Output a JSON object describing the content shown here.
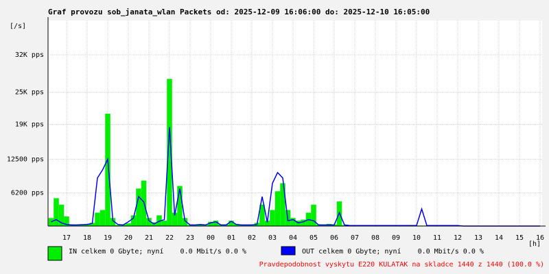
{
  "chart_data": {
    "type": "line",
    "title": "Graf provozu sob_janata_wlan Packets od: 2025-12-09 16:06:00 do: 2025-12-10 16:05:00",
    "y_unit_label": "[/s]",
    "x_unit_label": "[h]",
    "x": [
      0.25,
      0.5,
      0.75,
      1,
      1.25,
      1.5,
      1.75,
      2,
      2.25,
      2.5,
      2.75,
      3,
      3.25,
      3.5,
      3.75,
      4,
      4.25,
      4.5,
      4.75,
      5,
      5.25,
      5.5,
      5.75,
      6,
      6.25,
      6.5,
      6.75,
      7,
      7.25,
      7.5,
      7.75,
      8,
      8.25,
      8.5,
      8.75,
      9,
      9.25,
      9.5,
      9.75,
      10,
      10.25,
      10.5,
      10.75,
      11,
      11.25,
      11.5,
      11.75,
      12,
      12.25,
      12.5,
      12.75,
      13,
      13.25,
      13.5,
      13.75,
      14,
      14.25,
      14.5,
      14.75,
      15,
      15.25,
      15.5,
      15.75,
      16,
      16.25,
      16.5,
      16.75,
      17,
      17.25,
      17.5,
      17.75,
      18,
      18.25,
      18.5,
      18.75,
      19,
      19.25,
      19.5,
      19.75,
      20,
      20.25,
      20.5,
      20.75,
      21,
      21.25,
      21.5,
      21.75,
      22,
      22.25,
      22.5,
      22.75,
      23,
      23.25,
      23.5,
      23.75,
      24
    ],
    "series": [
      {
        "name": "IN celkem 0 Gbyte; nyní    0.0 Mbit/s 0.0 %",
        "color": "#00ee00",
        "values": [
          1500,
          5200,
          4000,
          1800,
          300,
          200,
          300,
          400,
          600,
          2500,
          3000,
          21000,
          1500,
          200,
          300,
          500,
          2000,
          7000,
          8500,
          1500,
          700,
          2000,
          1000,
          27500,
          2500,
          7500,
          1500,
          200,
          200,
          300,
          200,
          800,
          1000,
          300,
          300,
          1000,
          400,
          200,
          200,
          300,
          600,
          4000,
          1000,
          3000,
          6500,
          8000,
          3000,
          1500,
          1000,
          1200,
          2500,
          4000,
          300,
          200,
          400,
          300,
          4600,
          200,
          100,
          100,
          100,
          100,
          100,
          100,
          100,
          100,
          100,
          100,
          100,
          100,
          100,
          100,
          100,
          100,
          100,
          100,
          100,
          100,
          100,
          100,
          0,
          0,
          0,
          0,
          0,
          0,
          0,
          0,
          0,
          0,
          0,
          0,
          0,
          0,
          0,
          0
        ]
      },
      {
        "name": "OUT celkem 0 Gbyte; nyní    0.0 Mbit/s 0.0 %",
        "color": "#0000ff",
        "values": [
          800,
          1200,
          600,
          300,
          200,
          200,
          250,
          300,
          500,
          9000,
          10500,
          12500,
          1000,
          300,
          200,
          800,
          1500,
          5500,
          4500,
          1000,
          400,
          900,
          1200,
          18500,
          2000,
          7000,
          1000,
          200,
          200,
          300,
          200,
          600,
          800,
          200,
          200,
          900,
          300,
          200,
          200,
          200,
          300,
          5500,
          700,
          8000,
          10000,
          9000,
          1000,
          1200,
          600,
          800,
          1200,
          1000,
          200,
          200,
          200,
          200,
          2500,
          200,
          100,
          100,
          100,
          100,
          100,
          100,
          100,
          100,
          100,
          100,
          100,
          100,
          100,
          100,
          3200,
          100,
          100,
          100,
          100,
          100,
          100,
          100,
          0,
          0,
          0,
          0,
          0,
          0,
          0,
          0,
          0,
          0,
          0,
          0,
          0,
          0,
          0,
          0
        ]
      }
    ],
    "xlim": [
      0.1,
      24.1
    ],
    "xticks": [
      {
        "value": 1,
        "label": "17"
      },
      {
        "value": 2,
        "label": "18"
      },
      {
        "value": 3,
        "label": "19"
      },
      {
        "value": 4,
        "label": "20"
      },
      {
        "value": 5,
        "label": "21"
      },
      {
        "value": 6,
        "label": "22"
      },
      {
        "value": 7,
        "label": "23"
      },
      {
        "value": 8,
        "label": "00"
      },
      {
        "value": 9,
        "label": "01"
      },
      {
        "value": 10,
        "label": "02"
      },
      {
        "value": 11,
        "label": "03"
      },
      {
        "value": 12,
        "label": "04"
      },
      {
        "value": 13,
        "label": "05"
      },
      {
        "value": 14,
        "label": "06"
      },
      {
        "value": 15,
        "label": "07"
      },
      {
        "value": 16,
        "label": "08"
      },
      {
        "value": 17,
        "label": "09"
      },
      {
        "value": 18,
        "label": "10"
      },
      {
        "value": 19,
        "label": "11"
      },
      {
        "value": 20,
        "label": "12"
      },
      {
        "value": 21,
        "label": "13"
      },
      {
        "value": 22,
        "label": "14"
      },
      {
        "value": 23,
        "label": "15"
      },
      {
        "value": 24,
        "label": "16"
      }
    ],
    "ylim": [
      0,
      38400
    ],
    "yticks": [
      {
        "value": 6200,
        "label": "6200 pps"
      },
      {
        "value": 12500,
        "label": "12500 pps"
      },
      {
        "value": 19000,
        "label": "19K pps"
      },
      {
        "value": 25000,
        "label": "25K pps"
      },
      {
        "value": 32000,
        "label": "32K pps"
      }
    ],
    "grid": true,
    "footer": "Pravdepodobnost vyskytu E220 KULATAK na skladce 1440 z 1440 (100.0 %)"
  }
}
